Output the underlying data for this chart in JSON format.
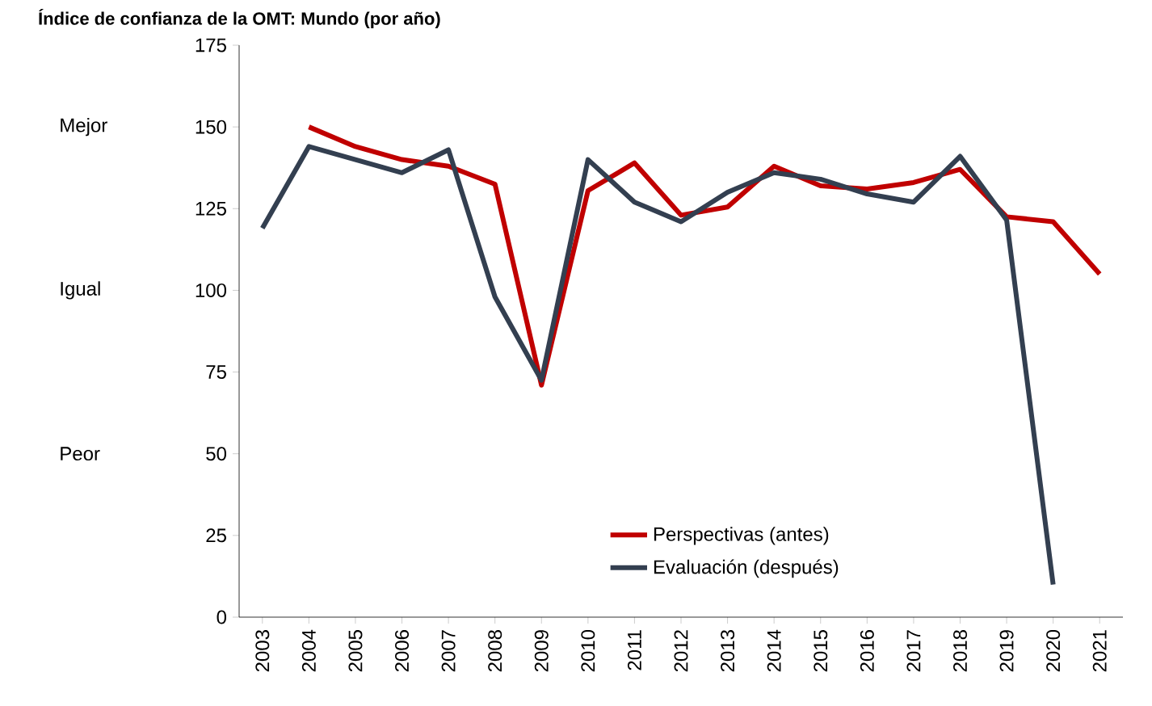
{
  "chart_data": {
    "type": "line",
    "title": "Índice de confianza de la OMT: Mundo (por año)",
    "categories": [
      "2003",
      "2004",
      "2005",
      "2006",
      "2007",
      "2008",
      "2009",
      "2010",
      "2011",
      "2012",
      "2013",
      "2014",
      "2015",
      "2016",
      "2017",
      "2018",
      "2019",
      "2020",
      "2021"
    ],
    "series": [
      {
        "name": "Perspectivas (antes)",
        "color": "#c00000",
        "values": [
          null,
          150,
          144,
          140,
          138,
          132.5,
          71,
          130.5,
          139,
          123,
          125.5,
          138,
          132,
          131,
          133,
          137,
          122.5,
          121,
          105
        ]
      },
      {
        "name": "Evaluación (después)",
        "color": "#333f50",
        "values": [
          119,
          144,
          140,
          136,
          143,
          98,
          72.5,
          140,
          127,
          121,
          130,
          136,
          134,
          129.5,
          127,
          141,
          121.5,
          10,
          null
        ]
      }
    ],
    "ylim": [
      0,
      175
    ],
    "yticks": [
      0,
      25,
      50,
      75,
      100,
      125,
      150,
      175
    ],
    "annotations": [
      "Mejor",
      "Igual",
      "Peor"
    ],
    "legend": "bottom",
    "grid": false,
    "marker": "none",
    "line_style": "solid"
  }
}
